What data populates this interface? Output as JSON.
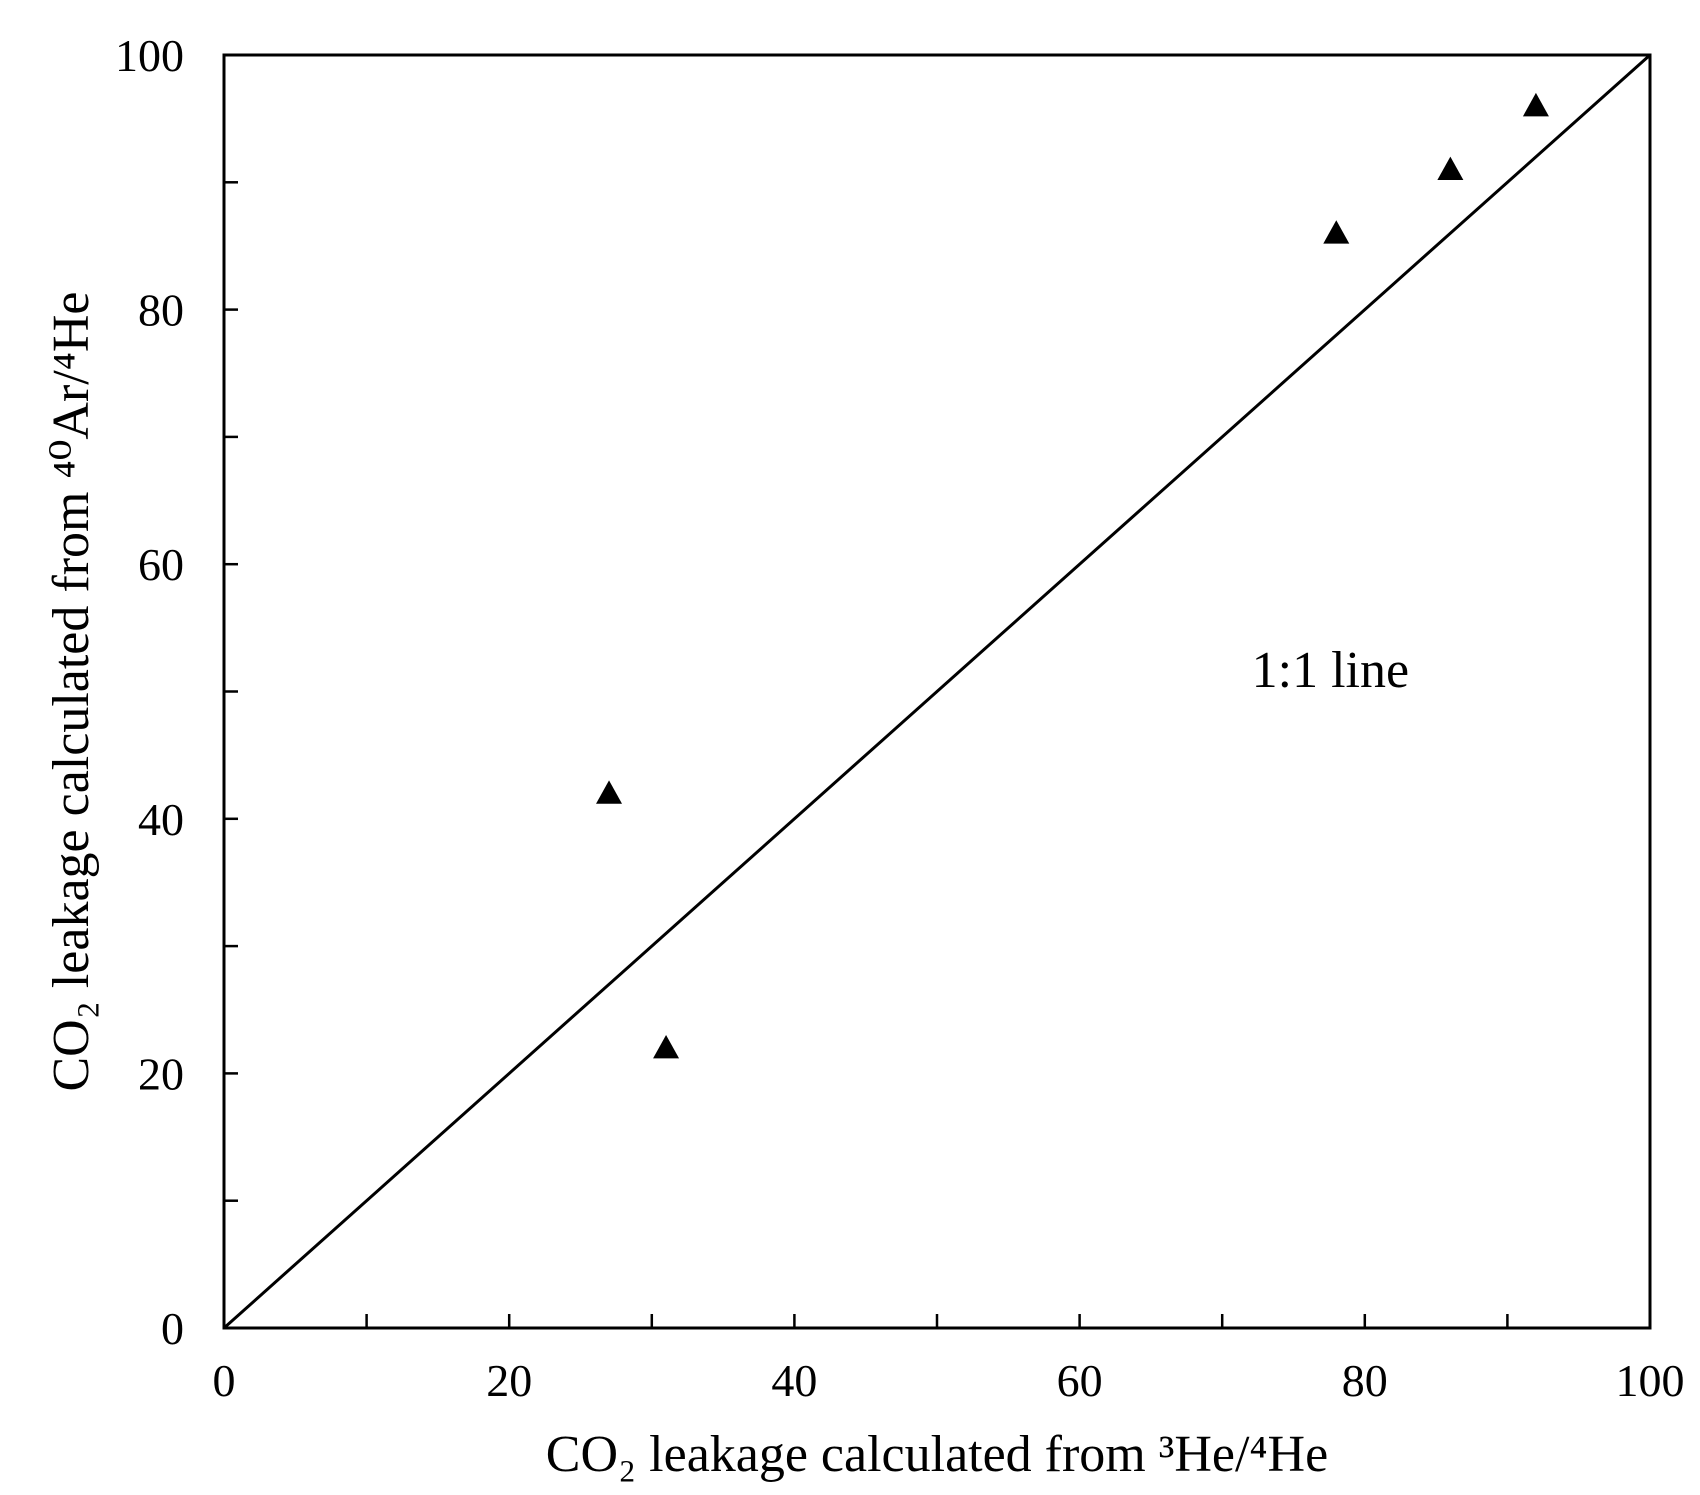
{
  "chart_data": {
    "type": "scatter",
    "title": "",
    "xlabel": "CO₂ leakage calculated from ³He/⁴He",
    "ylabel": "CO₂ leakage calculated from ⁴⁰Ar/⁴He",
    "xlim": [
      0,
      100
    ],
    "ylim": [
      0,
      100
    ],
    "x_ticks": [
      0,
      20,
      40,
      60,
      80,
      100
    ],
    "y_ticks": [
      0,
      20,
      40,
      60,
      80,
      100
    ],
    "x_tick_labels": [
      "0",
      "20",
      "40",
      "60",
      "80",
      "100"
    ],
    "y_tick_labels": [
      "0",
      "20",
      "40",
      "60",
      "80",
      "100"
    ],
    "x_minor_ticks": [
      10,
      30,
      50,
      70,
      90
    ],
    "y_minor_ticks": [
      10,
      30,
      50,
      70,
      90
    ],
    "grid": false,
    "legend": "none",
    "marker": "triangle",
    "marker_color": "#000000",
    "series": [
      {
        "x": [
          27,
          31,
          78,
          86,
          92
        ],
        "y": [
          42,
          22,
          86,
          91,
          96
        ]
      }
    ],
    "reference_line": {
      "from": [
        0,
        0
      ],
      "to": [
        100,
        100
      ],
      "label": "1:1 line",
      "label_at": [
        64,
        48
      ]
    }
  }
}
